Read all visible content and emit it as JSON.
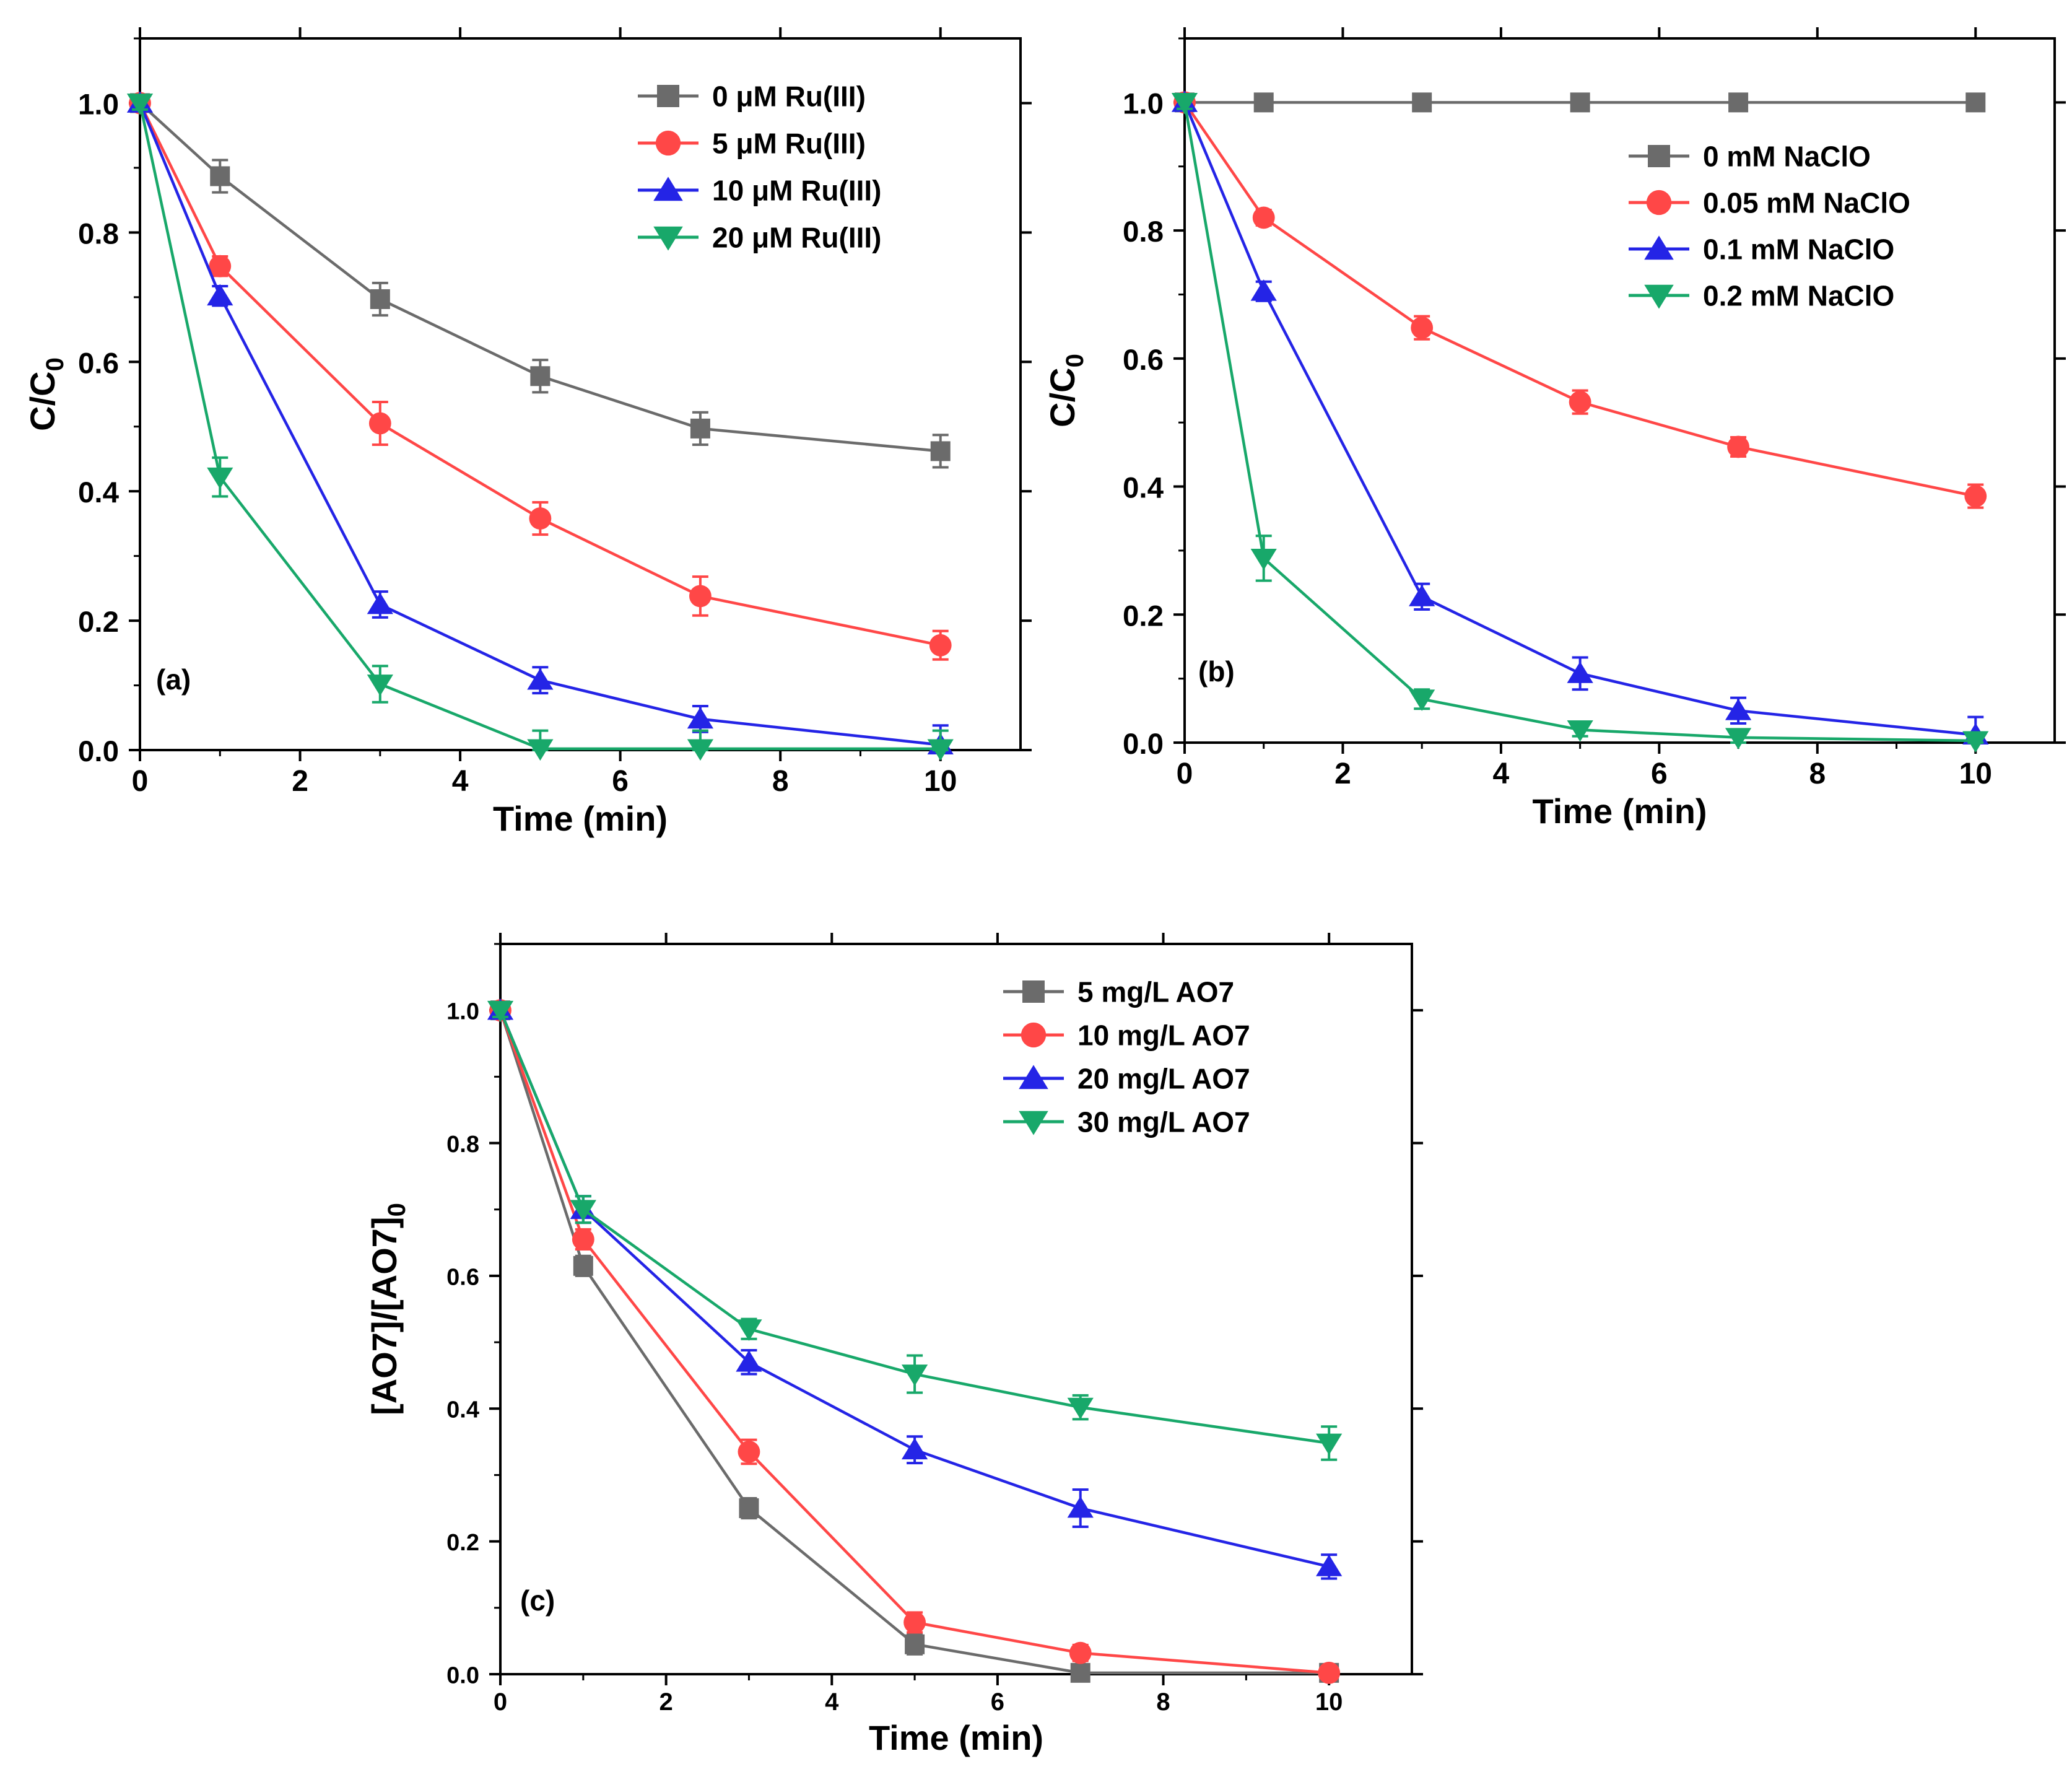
{
  "colors": {
    "gray": "#6b6b6b",
    "red": "#ff4747",
    "blue": "#2424e6",
    "green": "#18a86a",
    "axis": "#000000"
  },
  "chart_data": [
    {
      "type": "line",
      "panel_label": "(a)",
      "xlabel": "Time (min)",
      "ylabel": "C/C",
      "ylabel_sub": "0",
      "xlim": [
        0,
        11
      ],
      "ylim": [
        0,
        1.1
      ],
      "xticks": [
        "0",
        "2",
        "4",
        "6",
        "8",
        "10"
      ],
      "yticks": [
        "0.0",
        "0.2",
        "0.4",
        "0.6",
        "0.8",
        "1.0"
      ],
      "legend_position": "top-right",
      "x": [
        0,
        1,
        3,
        5,
        7,
        10
      ],
      "series": [
        {
          "name": "0 μM Ru(III)",
          "color": "gray",
          "marker": "square",
          "values": [
            1.0,
            0.887,
            0.697,
            0.578,
            0.497,
            0.462
          ],
          "errors": [
            0.012,
            0.025,
            0.025,
            0.025,
            0.025,
            0.025
          ]
        },
        {
          "name": "5 μM Ru(III)",
          "color": "red",
          "marker": "circle",
          "values": [
            1.0,
            0.748,
            0.505,
            0.358,
            0.238,
            0.162
          ],
          "errors": [
            0.01,
            0.015,
            0.033,
            0.025,
            0.03,
            0.022
          ]
        },
        {
          "name": "10 μM Ru(III)",
          "color": "blue",
          "marker": "triangle-up",
          "values": [
            1.0,
            0.702,
            0.225,
            0.108,
            0.048,
            0.008
          ],
          "errors": [
            0.01,
            0.015,
            0.02,
            0.02,
            0.02,
            0.03
          ]
        },
        {
          "name": "20 μM Ru(III)",
          "color": "green",
          "marker": "triangle-down",
          "values": [
            1.0,
            0.422,
            0.102,
            0.002,
            0.002,
            0.002
          ],
          "errors": [
            0.01,
            0.03,
            0.028,
            0.028,
            0.028,
            0.028
          ]
        }
      ]
    },
    {
      "type": "line",
      "panel_label": "(b)",
      "xlabel": "Time (min)",
      "ylabel": "C/C",
      "ylabel_sub": "0",
      "xlim": [
        0,
        11
      ],
      "ylim": [
        0,
        1.1
      ],
      "xticks": [
        "0",
        "2",
        "4",
        "6",
        "8",
        "10"
      ],
      "yticks": [
        "0.0",
        "0.2",
        "0.4",
        "0.6",
        "0.8",
        "1.0"
      ],
      "legend_position": "top-right",
      "x": [
        0,
        1,
        3,
        5,
        7,
        10
      ],
      "series": [
        {
          "name": "0 mM NaClO",
          "color": "gray",
          "marker": "square",
          "values": [
            1.0,
            1.0,
            1.0,
            1.0,
            1.0,
            1.0
          ],
          "errors": [
            0.005,
            0.005,
            0.005,
            0.005,
            0.005,
            0.005
          ]
        },
        {
          "name": "0.05 mM NaClO",
          "color": "red",
          "marker": "circle",
          "values": [
            1.0,
            0.82,
            0.648,
            0.532,
            0.462,
            0.385
          ],
          "errors": [
            0.01,
            0.012,
            0.018,
            0.018,
            0.015,
            0.018
          ]
        },
        {
          "name": "0.1 mM NaClO",
          "color": "blue",
          "marker": "triangle-up",
          "values": [
            1.0,
            0.705,
            0.228,
            0.108,
            0.05,
            0.012
          ],
          "errors": [
            0.01,
            0.015,
            0.02,
            0.025,
            0.02,
            0.028
          ]
        },
        {
          "name": "0.2 mM NaClO",
          "color": "green",
          "marker": "triangle-down",
          "values": [
            1.0,
            0.288,
            0.068,
            0.02,
            0.008,
            0.003
          ],
          "errors": [
            0.01,
            0.035,
            0.015,
            0.01,
            0.01,
            0.01
          ]
        }
      ]
    },
    {
      "type": "line",
      "panel_label": "(c)",
      "xlabel": "Time (min)",
      "ylabel": "[AO7]/[AO7]",
      "ylabel_sub": "0",
      "xlim": [
        0,
        11
      ],
      "ylim": [
        0,
        1.1
      ],
      "xticks": [
        "0",
        "2",
        "4",
        "6",
        "8",
        "10"
      ],
      "yticks": [
        "0.0",
        "0.2",
        "0.4",
        "0.6",
        "0.8",
        "1.0"
      ],
      "legend_position": "top-right",
      "x": [
        0,
        1,
        3,
        5,
        7,
        10
      ],
      "series": [
        {
          "name": "5 mg/L AO7",
          "color": "gray",
          "marker": "square",
          "values": [
            1.0,
            0.615,
            0.25,
            0.045,
            0.002,
            0.002
          ],
          "errors": [
            0.01,
            0.015,
            0.015,
            0.015,
            0.01,
            0.01
          ]
        },
        {
          "name": "10 mg/L AO7",
          "color": "red",
          "marker": "circle",
          "values": [
            1.0,
            0.655,
            0.335,
            0.078,
            0.032,
            0.002
          ],
          "errors": [
            0.01,
            0.015,
            0.018,
            0.015,
            0.012,
            0.01
          ]
        },
        {
          "name": "20 mg/L AO7",
          "color": "blue",
          "marker": "triangle-up",
          "values": [
            1.0,
            0.7,
            0.47,
            0.338,
            0.25,
            0.162
          ],
          "errors": [
            0.01,
            0.02,
            0.018,
            0.02,
            0.028,
            0.018
          ]
        },
        {
          "name": "30 mg/L AO7",
          "color": "green",
          "marker": "triangle-down",
          "values": [
            1.0,
            0.7,
            0.52,
            0.452,
            0.402,
            0.348
          ],
          "errors": [
            0.01,
            0.02,
            0.015,
            0.028,
            0.018,
            0.025
          ]
        }
      ]
    }
  ]
}
